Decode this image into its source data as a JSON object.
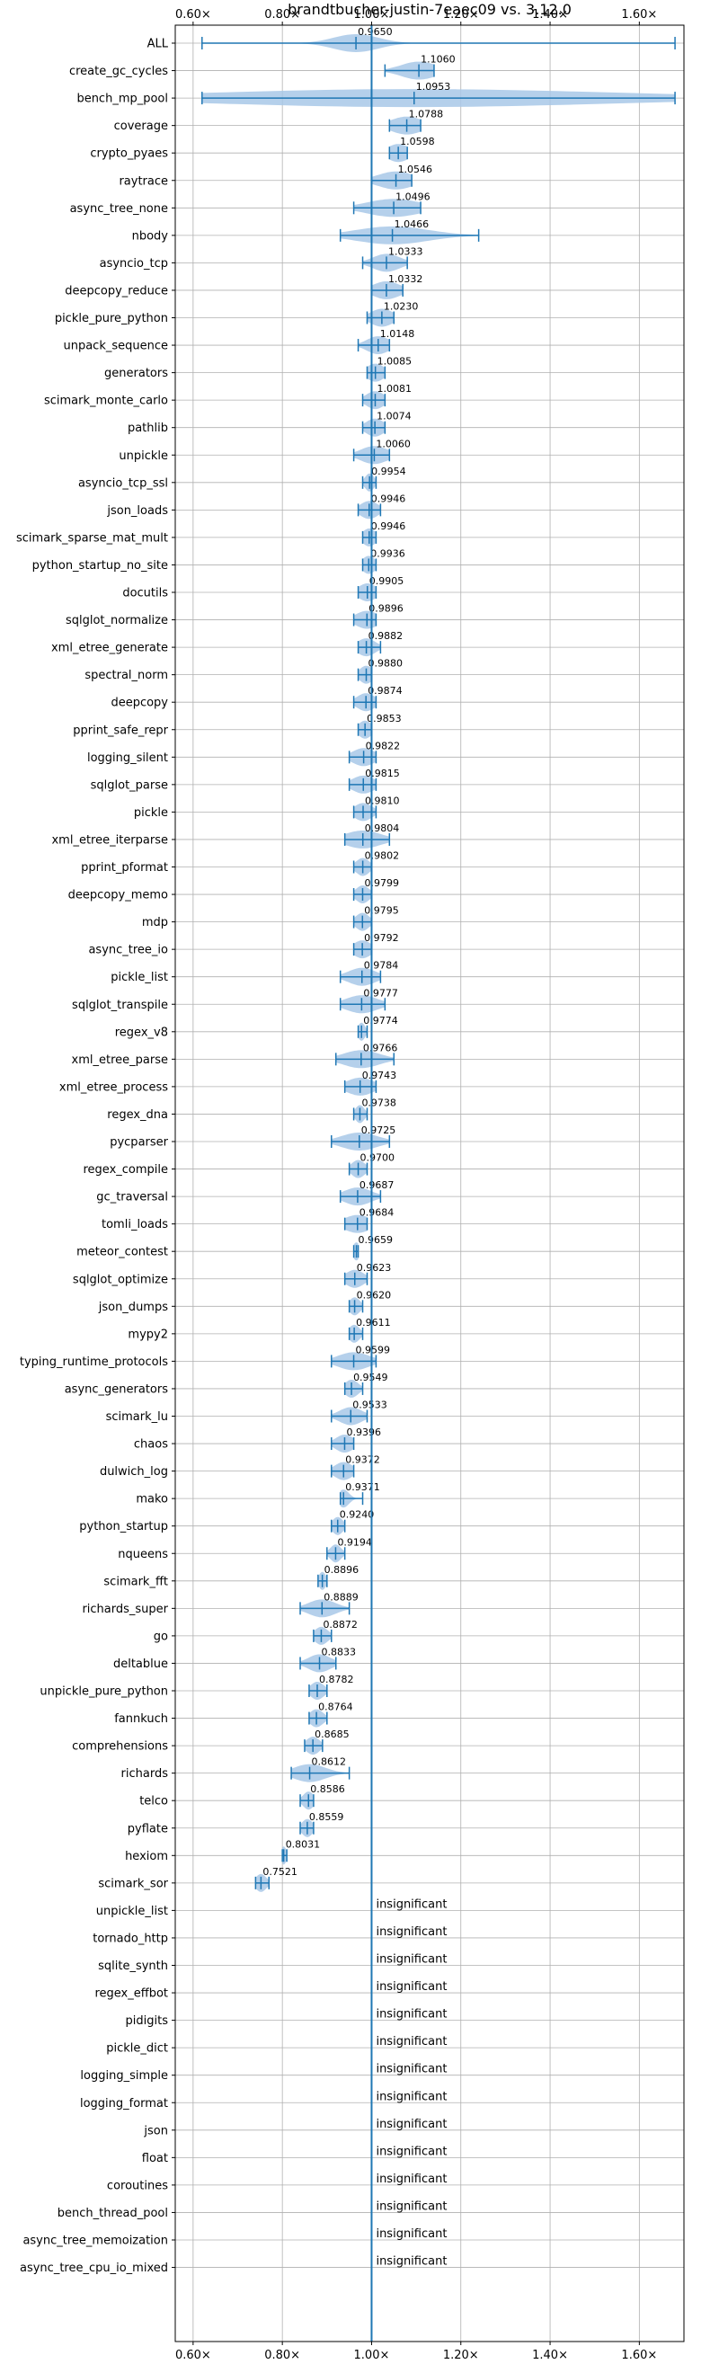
{
  "chart_data": {
    "type": "violin",
    "title": "brandtbucher-justin-7eaec09 vs. 3.12.0",
    "xlabel": "",
    "ylabel": "",
    "xlim": [
      0.56,
      1.7
    ],
    "x_tick_values": [
      0.6,
      0.8,
      1.0,
      1.2,
      1.4,
      1.6
    ],
    "x_tick_labels": [
      "0.60×",
      "0.80×",
      "1.00×",
      "1.20×",
      "1.40×",
      "1.60×"
    ],
    "reference_line": 1.0,
    "grid": true,
    "colors": {
      "accent": "#1f77b4",
      "violin_fill": "#a8c8e8",
      "grid": "#b0b0b0"
    },
    "insignificant_text": "insignificant",
    "benchmarks": [
      {
        "name": "ALL",
        "value": 0.965,
        "label": "0.9650",
        "min": 0.62,
        "max": 1.68,
        "spread": 0.05
      },
      {
        "name": "create_gc_cycles",
        "value": 1.106,
        "label": "1.1060",
        "min": 1.03,
        "max": 1.14,
        "spread": 0.04
      },
      {
        "name": "bench_mp_pool",
        "value": 1.0953,
        "label": "1.0953",
        "min": 0.62,
        "max": 1.68,
        "spread": 0.45
      },
      {
        "name": "coverage",
        "value": 1.0788,
        "label": "1.0788",
        "min": 1.04,
        "max": 1.11,
        "spread": 0.035
      },
      {
        "name": "crypto_pyaes",
        "value": 1.0598,
        "label": "1.0598",
        "min": 1.04,
        "max": 1.08,
        "spread": 0.025
      },
      {
        "name": "raytrace",
        "value": 1.0546,
        "label": "1.0546",
        "min": 1.0,
        "max": 1.09,
        "spread": 0.04
      },
      {
        "name": "async_tree_none",
        "value": 1.0496,
        "label": "1.0496",
        "min": 0.96,
        "max": 1.11,
        "spread": 0.06
      },
      {
        "name": "nbody",
        "value": 1.0466,
        "label": "1.0466",
        "min": 0.93,
        "max": 1.24,
        "spread": 0.08
      },
      {
        "name": "asyncio_tcp",
        "value": 1.0333,
        "label": "1.0333",
        "min": 0.98,
        "max": 1.08,
        "spread": 0.03
      },
      {
        "name": "deepcopy_reduce",
        "value": 1.0332,
        "label": "1.0332",
        "min": 1.0,
        "max": 1.07,
        "spread": 0.03
      },
      {
        "name": "pickle_pure_python",
        "value": 1.023,
        "label": "1.0230",
        "min": 0.99,
        "max": 1.05,
        "spread": 0.025
      },
      {
        "name": "unpack_sequence",
        "value": 1.0148,
        "label": "1.0148",
        "min": 0.97,
        "max": 1.04,
        "spread": 0.025
      },
      {
        "name": "generators",
        "value": 1.0085,
        "label": "1.0085",
        "min": 0.99,
        "max": 1.03,
        "spread": 0.02
      },
      {
        "name": "scimark_monte_carlo",
        "value": 1.0081,
        "label": "1.0081",
        "min": 0.98,
        "max": 1.03,
        "spread": 0.02
      },
      {
        "name": "pathlib",
        "value": 1.0074,
        "label": "1.0074",
        "min": 0.98,
        "max": 1.03,
        "spread": 0.02
      },
      {
        "name": "unpickle",
        "value": 1.006,
        "label": "1.0060",
        "min": 0.96,
        "max": 1.04,
        "spread": 0.03
      },
      {
        "name": "asyncio_tcp_ssl",
        "value": 0.9954,
        "label": "0.9954",
        "min": 0.98,
        "max": 1.01,
        "spread": 0.01
      },
      {
        "name": "json_loads",
        "value": 0.9946,
        "label": "0.9946",
        "min": 0.97,
        "max": 1.02,
        "spread": 0.02
      },
      {
        "name": "scimark_sparse_mat_mult",
        "value": 0.9946,
        "label": "0.9946",
        "min": 0.98,
        "max": 1.01,
        "spread": 0.015
      },
      {
        "name": "python_startup_no_site",
        "value": 0.9936,
        "label": "0.9936",
        "min": 0.98,
        "max": 1.01,
        "spread": 0.015
      },
      {
        "name": "docutils",
        "value": 0.9905,
        "label": "0.9905",
        "min": 0.97,
        "max": 1.01,
        "spread": 0.02
      },
      {
        "name": "sqlglot_normalize",
        "value": 0.9896,
        "label": "0.9896",
        "min": 0.96,
        "max": 1.01,
        "spread": 0.025
      },
      {
        "name": "xml_etree_generate",
        "value": 0.9882,
        "label": "0.9882",
        "min": 0.97,
        "max": 1.02,
        "spread": 0.02
      },
      {
        "name": "spectral_norm",
        "value": 0.988,
        "label": "0.9880",
        "min": 0.97,
        "max": 1.0,
        "spread": 0.015
      },
      {
        "name": "deepcopy",
        "value": 0.9874,
        "label": "0.9874",
        "min": 0.96,
        "max": 1.01,
        "spread": 0.02
      },
      {
        "name": "pprint_safe_repr",
        "value": 0.9853,
        "label": "0.9853",
        "min": 0.97,
        "max": 1.0,
        "spread": 0.015
      },
      {
        "name": "logging_silent",
        "value": 0.9822,
        "label": "0.9822",
        "min": 0.95,
        "max": 1.01,
        "spread": 0.025
      },
      {
        "name": "sqlglot_parse",
        "value": 0.9815,
        "label": "0.9815",
        "min": 0.95,
        "max": 1.01,
        "spread": 0.025
      },
      {
        "name": "pickle",
        "value": 0.981,
        "label": "0.9810",
        "min": 0.96,
        "max": 1.01,
        "spread": 0.02
      },
      {
        "name": "xml_etree_iterparse",
        "value": 0.9804,
        "label": "0.9804",
        "min": 0.94,
        "max": 1.04,
        "spread": 0.04
      },
      {
        "name": "pprint_pformat",
        "value": 0.9802,
        "label": "0.9802",
        "min": 0.96,
        "max": 1.0,
        "spread": 0.015
      },
      {
        "name": "deepcopy_memo",
        "value": 0.9799,
        "label": "0.9799",
        "min": 0.96,
        "max": 1.0,
        "spread": 0.015
      },
      {
        "name": "mdp",
        "value": 0.9795,
        "label": "0.9795",
        "min": 0.96,
        "max": 1.0,
        "spread": 0.015
      },
      {
        "name": "async_tree_io",
        "value": 0.9792,
        "label": "0.9792",
        "min": 0.96,
        "max": 1.0,
        "spread": 0.02
      },
      {
        "name": "pickle_list",
        "value": 0.9784,
        "label": "0.9784",
        "min": 0.93,
        "max": 1.02,
        "spread": 0.03
      },
      {
        "name": "sqlglot_transpile",
        "value": 0.9777,
        "label": "0.9777",
        "min": 0.93,
        "max": 1.03,
        "spread": 0.035
      },
      {
        "name": "regex_v8",
        "value": 0.9774,
        "label": "0.9774",
        "min": 0.97,
        "max": 0.99,
        "spread": 0.008
      },
      {
        "name": "xml_etree_parse",
        "value": 0.9766,
        "label": "0.9766",
        "min": 0.92,
        "max": 1.05,
        "spread": 0.04
      },
      {
        "name": "xml_etree_process",
        "value": 0.9743,
        "label": "0.9743",
        "min": 0.94,
        "max": 1.01,
        "spread": 0.03
      },
      {
        "name": "regex_dna",
        "value": 0.9738,
        "label": "0.9738",
        "min": 0.96,
        "max": 0.99,
        "spread": 0.01
      },
      {
        "name": "pycparser",
        "value": 0.9725,
        "label": "0.9725",
        "min": 0.91,
        "max": 1.04,
        "spread": 0.04
      },
      {
        "name": "regex_compile",
        "value": 0.97,
        "label": "0.9700",
        "min": 0.95,
        "max": 0.99,
        "spread": 0.015
      },
      {
        "name": "gc_traversal",
        "value": 0.9687,
        "label": "0.9687",
        "min": 0.93,
        "max": 1.02,
        "spread": 0.03
      },
      {
        "name": "tomli_loads",
        "value": 0.9684,
        "label": "0.9684",
        "min": 0.94,
        "max": 0.99,
        "spread": 0.03
      },
      {
        "name": "meteor_contest",
        "value": 0.9659,
        "label": "0.9659",
        "min": 0.96,
        "max": 0.97,
        "spread": 0.008
      },
      {
        "name": "sqlglot_optimize",
        "value": 0.9623,
        "label": "0.9623",
        "min": 0.94,
        "max": 0.99,
        "spread": 0.02
      },
      {
        "name": "json_dumps",
        "value": 0.962,
        "label": "0.9620",
        "min": 0.95,
        "max": 0.98,
        "spread": 0.012
      },
      {
        "name": "mypy2",
        "value": 0.9611,
        "label": "0.9611",
        "min": 0.95,
        "max": 0.98,
        "spread": 0.012
      },
      {
        "name": "typing_runtime_protocols",
        "value": 0.9599,
        "label": "0.9599",
        "min": 0.91,
        "max": 1.01,
        "spread": 0.035
      },
      {
        "name": "async_generators",
        "value": 0.9549,
        "label": "0.9549",
        "min": 0.94,
        "max": 0.98,
        "spread": 0.015
      },
      {
        "name": "scimark_lu",
        "value": 0.9533,
        "label": "0.9533",
        "min": 0.91,
        "max": 0.99,
        "spread": 0.025
      },
      {
        "name": "chaos",
        "value": 0.9396,
        "label": "0.9396",
        "min": 0.91,
        "max": 0.96,
        "spread": 0.02
      },
      {
        "name": "dulwich_log",
        "value": 0.9372,
        "label": "0.9372",
        "min": 0.91,
        "max": 0.96,
        "spread": 0.02
      },
      {
        "name": "mako",
        "value": 0.9371,
        "label": "0.9371",
        "min": 0.93,
        "max": 0.98,
        "spread": 0.012
      },
      {
        "name": "python_startup",
        "value": 0.924,
        "label": "0.9240",
        "min": 0.91,
        "max": 0.94,
        "spread": 0.012
      },
      {
        "name": "nqueens",
        "value": 0.9194,
        "label": "0.9194",
        "min": 0.9,
        "max": 0.94,
        "spread": 0.012
      },
      {
        "name": "scimark_fft",
        "value": 0.8896,
        "label": "0.8896",
        "min": 0.88,
        "max": 0.9,
        "spread": 0.008
      },
      {
        "name": "richards_super",
        "value": 0.8889,
        "label": "0.8889",
        "min": 0.84,
        "max": 0.95,
        "spread": 0.03
      },
      {
        "name": "go",
        "value": 0.8872,
        "label": "0.8872",
        "min": 0.87,
        "max": 0.91,
        "spread": 0.015
      },
      {
        "name": "deltablue",
        "value": 0.8833,
        "label": "0.8833",
        "min": 0.84,
        "max": 0.92,
        "spread": 0.025
      },
      {
        "name": "unpickle_pure_python",
        "value": 0.8782,
        "label": "0.8782",
        "min": 0.86,
        "max": 0.9,
        "spread": 0.015
      },
      {
        "name": "fannkuch",
        "value": 0.8764,
        "label": "0.8764",
        "min": 0.86,
        "max": 0.9,
        "spread": 0.015
      },
      {
        "name": "comprehensions",
        "value": 0.8685,
        "label": "0.8685",
        "min": 0.85,
        "max": 0.89,
        "spread": 0.015
      },
      {
        "name": "richards",
        "value": 0.8612,
        "label": "0.8612",
        "min": 0.82,
        "max": 0.95,
        "spread": 0.035
      },
      {
        "name": "telco",
        "value": 0.8586,
        "label": "0.8586",
        "min": 0.84,
        "max": 0.87,
        "spread": 0.012
      },
      {
        "name": "pyflate",
        "value": 0.8559,
        "label": "0.8559",
        "min": 0.84,
        "max": 0.87,
        "spread": 0.012
      },
      {
        "name": "hexiom",
        "value": 0.8031,
        "label": "0.8031",
        "min": 0.8,
        "max": 0.81,
        "spread": 0.006
      },
      {
        "name": "scimark_sor",
        "value": 0.7521,
        "label": "0.7521",
        "min": 0.74,
        "max": 0.77,
        "spread": 0.012
      },
      {
        "name": "unpickle_list",
        "insignificant": true
      },
      {
        "name": "tornado_http",
        "insignificant": true
      },
      {
        "name": "sqlite_synth",
        "insignificant": true
      },
      {
        "name": "regex_effbot",
        "insignificant": true
      },
      {
        "name": "pidigits",
        "insignificant": true
      },
      {
        "name": "pickle_dict",
        "insignificant": true
      },
      {
        "name": "logging_simple",
        "insignificant": true
      },
      {
        "name": "logging_format",
        "insignificant": true
      },
      {
        "name": "json",
        "insignificant": true
      },
      {
        "name": "float",
        "insignificant": true
      },
      {
        "name": "coroutines",
        "insignificant": true
      },
      {
        "name": "bench_thread_pool",
        "insignificant": true
      },
      {
        "name": "async_tree_memoization",
        "insignificant": true
      },
      {
        "name": "async_tree_cpu_io_mixed",
        "insignificant": true
      }
    ]
  }
}
